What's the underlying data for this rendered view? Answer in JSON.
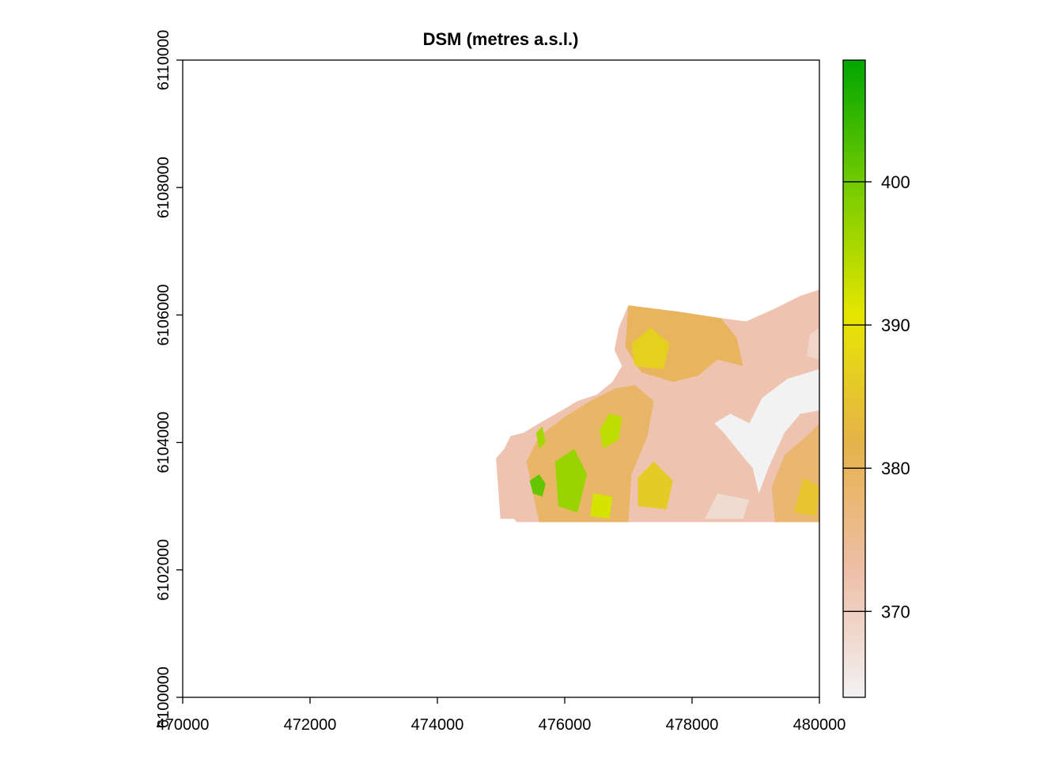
{
  "chart_data": {
    "type": "heatmap",
    "title": "DSM (metres a.s.l.)",
    "xlabel": "",
    "ylabel": "",
    "xlim": [
      470000,
      480000
    ],
    "ylim": [
      6100000,
      6110000
    ],
    "x_ticks": [
      470000,
      472000,
      474000,
      476000,
      478000,
      480000
    ],
    "x_tick_labels": [
      "470000",
      "472000",
      "474000",
      "476000",
      "478000",
      "480000"
    ],
    "y_ticks": [
      6100000,
      6102000,
      6104000,
      6106000,
      6108000,
      6110000
    ],
    "y_tick_labels": [
      "6100000",
      "6102000",
      "6104000",
      "6106000",
      "6108000",
      "6110000"
    ],
    "legend": {
      "position": "right",
      "range": [
        364,
        408.5
      ],
      "ticks": [
        370,
        380,
        390,
        400
      ],
      "tick_labels": [
        "370",
        "380",
        "390",
        "400"
      ],
      "colors": [
        "#F2F2F2",
        "#EEBEA8",
        "#E6B24A",
        "#E6E600",
        "#77CC00",
        "#00A600"
      ]
    },
    "raster_extent": {
      "x": [
        474900,
        480000
      ],
      "y": [
        6102750,
        6106400
      ]
    },
    "regions": [
      {
        "name": "raster-base",
        "value": 372,
        "polygon": [
          [
            474990,
            6102800
          ],
          [
            474950,
            6103350
          ],
          [
            474920,
            6103750
          ],
          [
            475050,
            6103900
          ],
          [
            475150,
            6104100
          ],
          [
            475350,
            6104150
          ],
          [
            475600,
            6104300
          ],
          [
            475950,
            6104500
          ],
          [
            476200,
            6104650
          ],
          [
            476500,
            6104750
          ],
          [
            476750,
            6104950
          ],
          [
            476900,
            6105200
          ],
          [
            476780,
            6105450
          ],
          [
            476850,
            6105800
          ],
          [
            477000,
            6106150
          ],
          [
            477800,
            6106050
          ],
          [
            478450,
            6105950
          ],
          [
            478850,
            6105900
          ],
          [
            479300,
            6106100
          ],
          [
            479700,
            6106300
          ],
          [
            480000,
            6106400
          ],
          [
            480000,
            6102750
          ],
          [
            475250,
            6102750
          ],
          [
            475200,
            6102800
          ]
        ]
      },
      {
        "name": "upland-west",
        "value": 379,
        "polygon": [
          [
            475600,
            6102750
          ],
          [
            475500,
            6103200
          ],
          [
            475400,
            6103700
          ],
          [
            475600,
            6104100
          ],
          [
            476000,
            6104400
          ],
          [
            476400,
            6104650
          ],
          [
            476800,
            6104850
          ],
          [
            477100,
            6104900
          ],
          [
            477400,
            6104650
          ],
          [
            477300,
            6104100
          ],
          [
            477050,
            6103500
          ],
          [
            477000,
            6102750
          ]
        ]
      },
      {
        "name": "upland-north",
        "value": 380,
        "polygon": [
          [
            477000,
            6106150
          ],
          [
            476950,
            6105500
          ],
          [
            477200,
            6105100
          ],
          [
            477700,
            6104950
          ],
          [
            478100,
            6105050
          ],
          [
            478400,
            6105300
          ],
          [
            478800,
            6105200
          ],
          [
            478700,
            6105650
          ],
          [
            478450,
            6105950
          ],
          [
            477800,
            6106050
          ]
        ]
      },
      {
        "name": "upland-south-east",
        "value": 378,
        "polygon": [
          [
            479300,
            6102750
          ],
          [
            479250,
            6103300
          ],
          [
            479450,
            6103800
          ],
          [
            479800,
            6104100
          ],
          [
            480000,
            6104300
          ],
          [
            480000,
            6102750
          ]
        ]
      },
      {
        "name": "valley",
        "value": 364,
        "polygon": [
          [
            478900,
            6104300
          ],
          [
            479100,
            6104700
          ],
          [
            479500,
            6105000
          ],
          [
            480000,
            6105150
          ],
          [
            480000,
            6104500
          ],
          [
            479700,
            6104450
          ],
          [
            479450,
            6104150
          ],
          [
            479200,
            6103600
          ],
          [
            479050,
            6103200
          ],
          [
            478950,
            6103600
          ],
          [
            478700,
            6103900
          ],
          [
            478500,
            6104150
          ],
          [
            478350,
            6104300
          ],
          [
            478600,
            6104450
          ]
        ]
      },
      {
        "name": "green-patch-1",
        "value": 401,
        "polygon": [
          [
            475500,
            6103200
          ],
          [
            475650,
            6103150
          ],
          [
            475700,
            6103350
          ],
          [
            475600,
            6103500
          ],
          [
            475450,
            6103400
          ]
        ]
      },
      {
        "name": "green-patch-2",
        "value": 397,
        "polygon": [
          [
            475900,
            6103000
          ],
          [
            476200,
            6102900
          ],
          [
            476350,
            6103500
          ],
          [
            476150,
            6103900
          ],
          [
            475850,
            6103700
          ]
        ]
      },
      {
        "name": "green-patch-3",
        "value": 394,
        "polygon": [
          [
            476600,
            6103900
          ],
          [
            476850,
            6104050
          ],
          [
            476900,
            6104400
          ],
          [
            476700,
            6104450
          ],
          [
            476550,
            6104200
          ]
        ]
      },
      {
        "name": "green-patch-4",
        "value": 396,
        "polygon": [
          [
            475600,
            6103900
          ],
          [
            475700,
            6104000
          ],
          [
            475650,
            6104250
          ],
          [
            475550,
            6104150
          ]
        ]
      },
      {
        "name": "yellow-patch-1",
        "value": 386,
        "polygon": [
          [
            477150,
            6103000
          ],
          [
            477600,
            6102950
          ],
          [
            477700,
            6103400
          ],
          [
            477400,
            6103700
          ],
          [
            477150,
            6103450
          ]
        ]
      },
      {
        "name": "yellow-patch-2",
        "value": 387,
        "polygon": [
          [
            477100,
            6105200
          ],
          [
            477550,
            6105150
          ],
          [
            477650,
            6105550
          ],
          [
            477350,
            6105800
          ],
          [
            477050,
            6105550
          ]
        ]
      },
      {
        "name": "yellow-patch-3",
        "value": 385,
        "polygon": [
          [
            479600,
            6102900
          ],
          [
            479950,
            6102850
          ],
          [
            480000,
            6103300
          ],
          [
            479750,
            6103450
          ]
        ]
      },
      {
        "name": "green-patch-5",
        "value": 392,
        "polygon": [
          [
            476400,
            6102850
          ],
          [
            476700,
            6102800
          ],
          [
            476750,
            6103150
          ],
          [
            476450,
            6103200
          ]
        ]
      },
      {
        "name": "light-patch-1",
        "value": 368,
        "polygon": [
          [
            478200,
            6102800
          ],
          [
            478800,
            6102800
          ],
          [
            478900,
            6103100
          ],
          [
            478400,
            6103200
          ]
        ]
      },
      {
        "name": "light-patch-2",
        "value": 369,
        "polygon": [
          [
            479800,
            6105350
          ],
          [
            480000,
            6105300
          ],
          [
            480000,
            6105800
          ],
          [
            479850,
            6105700
          ]
        ]
      }
    ]
  }
}
